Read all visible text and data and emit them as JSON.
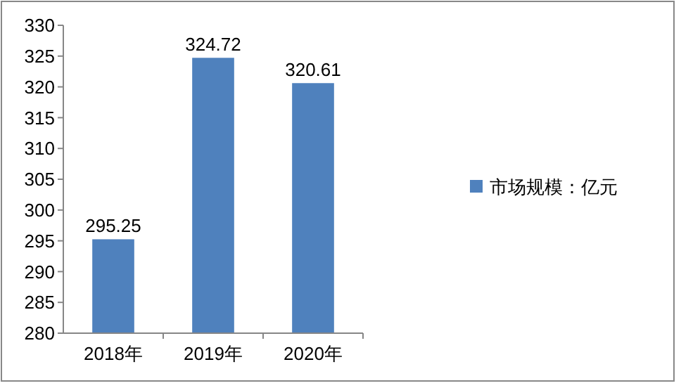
{
  "chart_data": {
    "type": "bar",
    "categories": [
      "2018年",
      "2019年",
      "2020年"
    ],
    "series": [
      {
        "name": "市场规模：亿元",
        "color": "#4f81bd",
        "values": [
          295.25,
          324.72,
          320.61
        ]
      }
    ],
    "ylim": [
      280,
      330
    ],
    "yticks": [
      280,
      285,
      290,
      295,
      300,
      305,
      310,
      315,
      320,
      325,
      330
    ],
    "data_labels": true,
    "legend": "right",
    "grid": false
  }
}
